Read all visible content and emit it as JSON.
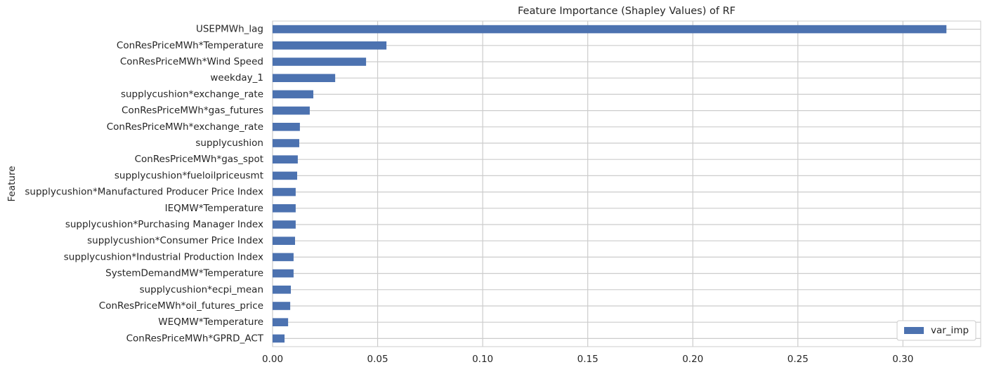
{
  "chart_data": {
    "type": "barh",
    "title": "Feature Importance (Shapley Values) of RF",
    "y_label": "Feature",
    "categories": [
      "USEPMWh_lag",
      "ConResPriceMWh*Temperature",
      "ConResPriceMWh*Wind Speed",
      "weekday_1",
      "supplycushion*exchange_rate",
      "ConResPriceMWh*gas_futures",
      "ConResPriceMWh*exchange_rate",
      "supplycushion",
      "ConResPriceMWh*gas_spot",
      "supplycushion*fueloilpriceusmt",
      "supplycushion*Manufactured Producer Price Index",
      "IEQMW*Temperature",
      "supplycushion*Purchasing Manager Index",
      "supplycushion*Consumer Price Index",
      "supplycushion*Industrial Production Index",
      "SystemDemandMW*Temperature",
      "supplycushion*ecpi_mean",
      "ConResPriceMWh*oil_futures_price",
      "WEQMW*Temperature",
      "ConResPriceMWh*GPRD_ACT"
    ],
    "series": [
      {
        "name": "var_imp",
        "color": "#4c72b0",
        "values": [
          0.3207,
          0.0542,
          0.0445,
          0.0298,
          0.0194,
          0.0177,
          0.013,
          0.0127,
          0.012,
          0.0117,
          0.011,
          0.011,
          0.011,
          0.0107,
          0.01,
          0.01,
          0.0087,
          0.0084,
          0.0074,
          0.0057
        ]
      }
    ],
    "xlim": [
      0,
      0.337
    ],
    "xticks": [
      {
        "value": 0,
        "label": "0.00"
      },
      0.05,
      {
        "value": 0.1,
        "label": "0.10"
      },
      0.15,
      {
        "value": 0.2,
        "label": "0.20"
      },
      0.25,
      {
        "value": 0.3,
        "label": "0.30"
      }
    ],
    "grid": true,
    "legend": "lower right"
  }
}
